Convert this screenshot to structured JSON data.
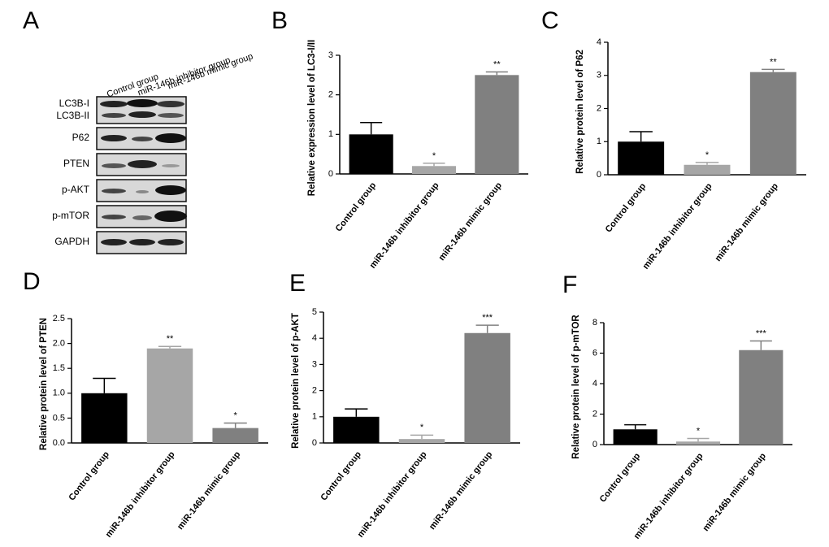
{
  "blot": {
    "panel": "A",
    "lanes": [
      "Control group",
      "miR-146b inhibitor group",
      "miR-146b mimic group"
    ],
    "bands": [
      "LC3B-I",
      "LC3B-II",
      "P62",
      "PTEN",
      "p-AKT",
      "p-mTOR",
      "GAPDH"
    ]
  },
  "chart_data": [
    {
      "type": "bar",
      "panel": "B",
      "y_label": "Relative expression level of LC3-I/II",
      "categories": [
        "Control group",
        "miR-146b inhibitor group",
        "miR-146b mimic group"
      ],
      "values": [
        1.0,
        0.2,
        2.5
      ],
      "errors": [
        0.3,
        0.07,
        0.08
      ],
      "significance": [
        null,
        "*",
        "**"
      ],
      "colors": [
        "#000000",
        "#a6a6a6",
        "#808080"
      ],
      "ylim": [
        0,
        3
      ],
      "yticks": [
        0,
        1,
        2,
        3
      ]
    },
    {
      "type": "bar",
      "panel": "C",
      "y_label": "Relative protein level of P62",
      "categories": [
        "Control group",
        "miR-146b inhibitor group",
        "miR-146b mimic group"
      ],
      "values": [
        1.0,
        0.3,
        3.1
      ],
      "errors": [
        0.3,
        0.07,
        0.08
      ],
      "significance": [
        null,
        "*",
        "**"
      ],
      "colors": [
        "#000000",
        "#a6a6a6",
        "#808080"
      ],
      "ylim": [
        0,
        4
      ],
      "yticks": [
        0,
        1,
        2,
        3,
        4
      ]
    },
    {
      "type": "bar",
      "panel": "D",
      "y_label": "Relative protein level of PTEN",
      "categories": [
        "Control group",
        "miR-146b inhibitor group",
        "miR-146b mimic group"
      ],
      "values": [
        1.0,
        1.9,
        0.3
      ],
      "errors": [
        0.3,
        0.04,
        0.1
      ],
      "significance": [
        null,
        "**",
        "*"
      ],
      "colors": [
        "#000000",
        "#a6a6a6",
        "#808080"
      ],
      "ylim": [
        0,
        2.5
      ],
      "yticks": [
        {
          "value": 0,
          "label": "0.0"
        },
        0.5,
        {
          "value": 1,
          "label": "1.0"
        },
        1.5,
        {
          "value": 2,
          "label": "2.0"
        },
        2.5
      ]
    },
    {
      "type": "bar",
      "panel": "E",
      "y_label": "Relative protein level of p-AKT",
      "categories": [
        "Control group",
        "miR-146b inhibitor group",
        "miR-146b mimic group"
      ],
      "values": [
        1.0,
        0.15,
        4.2
      ],
      "errors": [
        0.3,
        0.15,
        0.3
      ],
      "significance": [
        null,
        "*",
        "***"
      ],
      "colors": [
        "#000000",
        "#a6a6a6",
        "#808080"
      ],
      "ylim": [
        0,
        5
      ],
      "yticks": [
        0,
        1,
        2,
        3,
        4,
        5
      ]
    },
    {
      "type": "bar",
      "panel": "F",
      "y_label": "Relative protein level of p-mTOR",
      "categories": [
        "Control group",
        "miR-146b inhibitor group",
        "miR-146b mimic group"
      ],
      "values": [
        1.0,
        0.2,
        6.2
      ],
      "errors": [
        0.3,
        0.2,
        0.6
      ],
      "significance": [
        null,
        "*",
        "***"
      ],
      "colors": [
        "#000000",
        "#a6a6a6",
        "#808080"
      ],
      "ylim": [
        0,
        8
      ],
      "yticks": [
        0,
        2,
        4,
        6,
        8
      ]
    }
  ]
}
